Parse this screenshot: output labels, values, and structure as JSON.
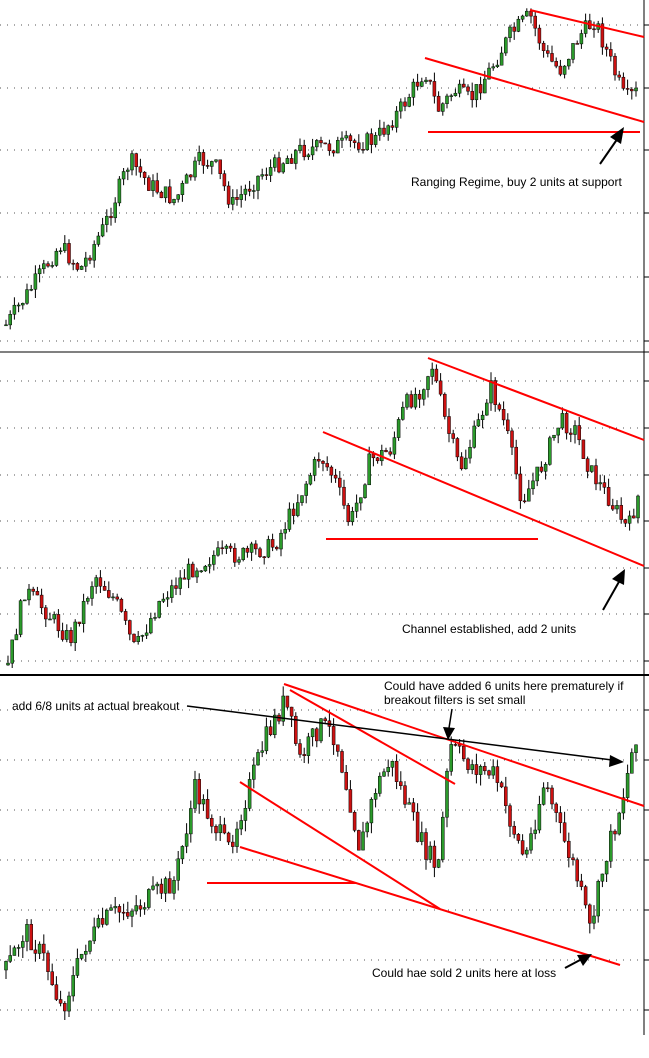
{
  "colors": {
    "bull": "#2b9a2b",
    "bear": "#cc1111",
    "wick": "#000000",
    "trendline": "#ff0000",
    "arrow": "#000000",
    "grid": "#555555",
    "divider": "#000000",
    "background": "#ffffff"
  },
  "chart_data": [
    {
      "type": "candlestick",
      "panel": "top",
      "annotation": "Ranging Regime, buy 2 units at support",
      "grid": "dotted-horizontal",
      "y_scale": "price (no labels shown)"
    },
    {
      "type": "candlestick",
      "panel": "middle",
      "annotation": "Channel established, add 2 units",
      "grid": "dotted-horizontal",
      "y_scale": "price (no labels shown)"
    },
    {
      "type": "candlestick",
      "panel": "bottom",
      "annotations": [
        "add 6/8 units at actual breakout",
        "Could have added 6 units here prematurely if",
        "breakout filters is set small",
        "Could hae sold 2 units here at loss"
      ],
      "grid": "dotted-horizontal",
      "y_scale": "price (no labels shown)"
    }
  ]
}
